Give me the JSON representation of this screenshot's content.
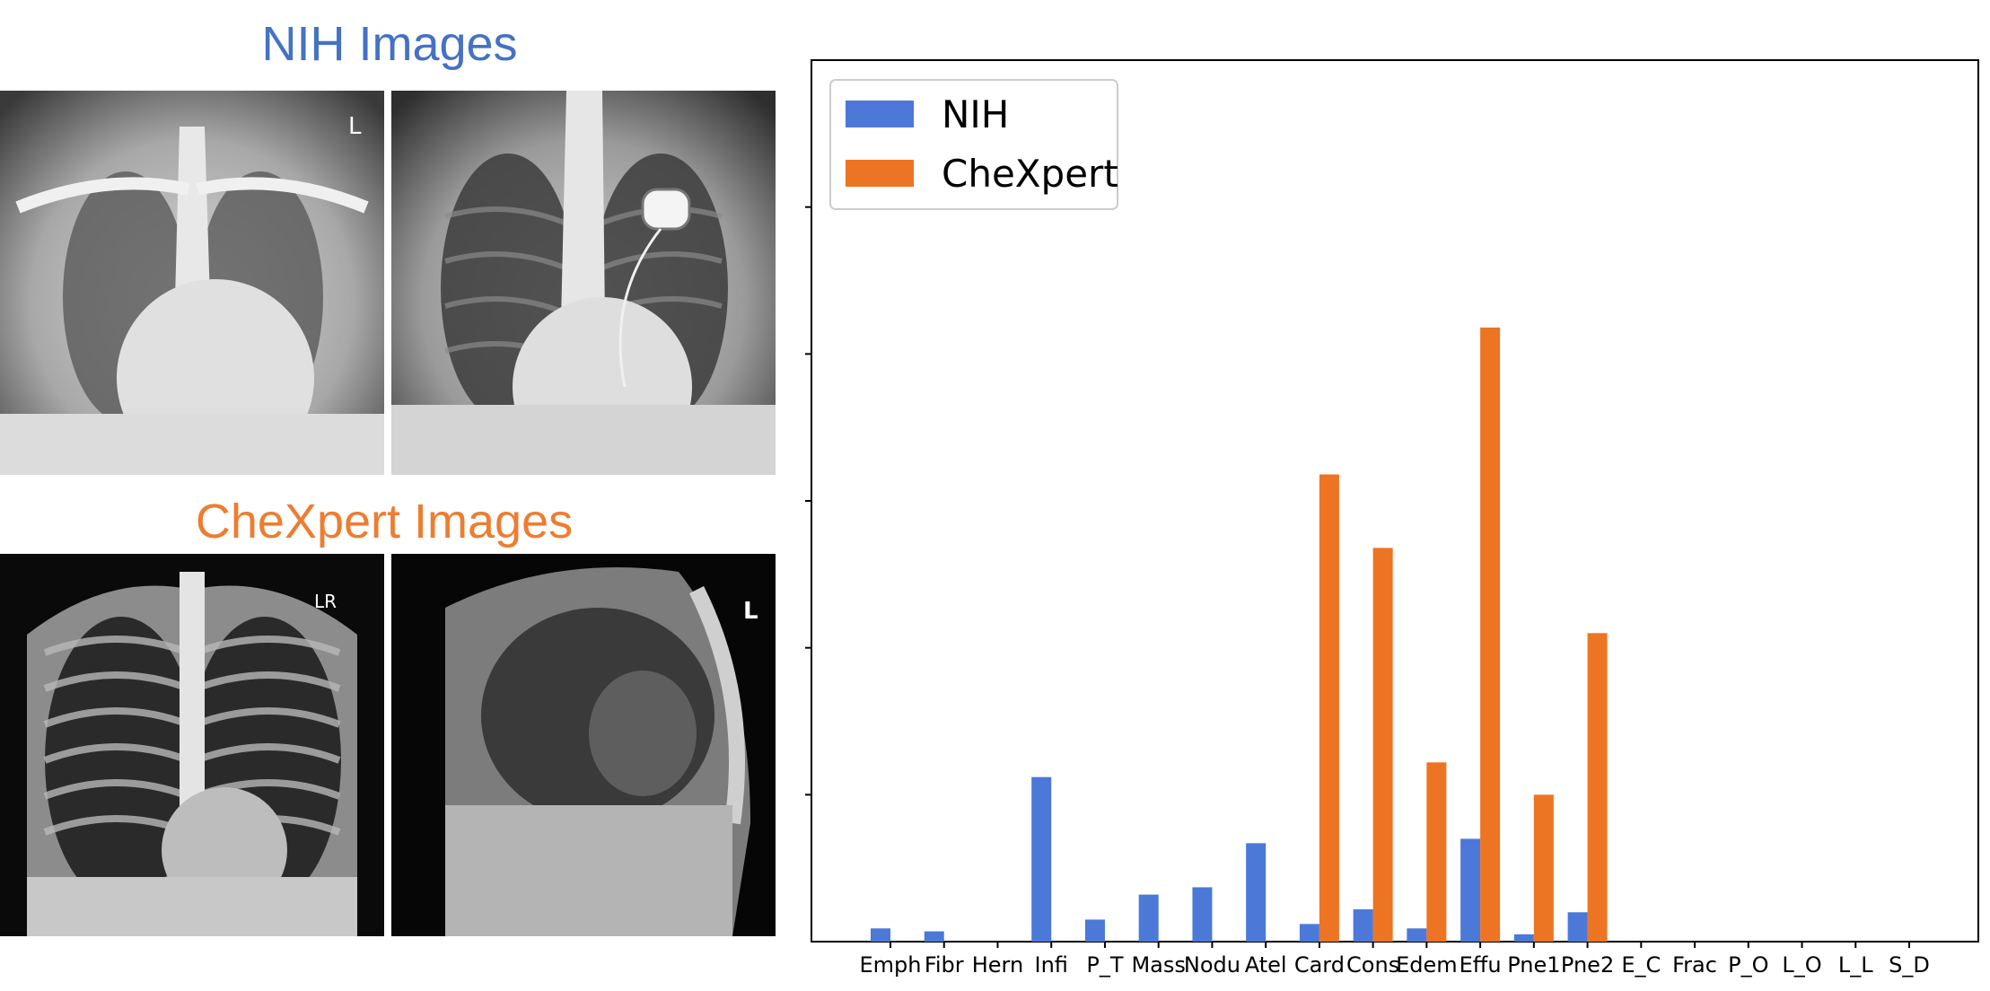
{
  "panels": {
    "nih_title": "NIH Images",
    "chexpert_title": "CheXpert Images",
    "nih_color": "#4472c4",
    "chexpert_color": "#ed7d31",
    "images": [
      {
        "name": "nih-frontal-xray",
        "marker": "L"
      },
      {
        "name": "nih-frontal-pacemaker-xray",
        "marker": ""
      },
      {
        "name": "chexpert-frontal-xray",
        "marker": "LR"
      },
      {
        "name": "chexpert-lateral-xray",
        "marker": "L"
      }
    ]
  },
  "chart_data": {
    "type": "bar",
    "categories": [
      "Emph",
      "Fibr",
      "Hern",
      "Infi",
      "P_T",
      "Mass",
      "Nodu",
      "Atel",
      "Card",
      "Cons",
      "Edem",
      "Effu",
      "Pne1",
      "Pne2",
      "E_C",
      "Frac",
      "P_O",
      "L_O",
      "L_L",
      "S_D"
    ],
    "series": [
      {
        "name": "NIH",
        "color": "#4c78d8",
        "values": [
          0.9,
          0.7,
          0,
          11.2,
          1.5,
          3.2,
          3.7,
          6.7,
          1.2,
          2.2,
          0.9,
          7.0,
          0.5,
          2.0,
          0,
          0,
          0,
          0,
          0,
          0
        ]
      },
      {
        "name": "CheXpert",
        "color": "#ed7422",
        "values": [
          0,
          0,
          0,
          0,
          0,
          0,
          0,
          0,
          31.8,
          26.8,
          12.2,
          41.8,
          10.0,
          21.0,
          0,
          0,
          0,
          0,
          0,
          0
        ]
      }
    ],
    "ylim": [
      0,
      60
    ],
    "ytick_labels_shown": false,
    "legend": "top-left",
    "grid": false
  }
}
